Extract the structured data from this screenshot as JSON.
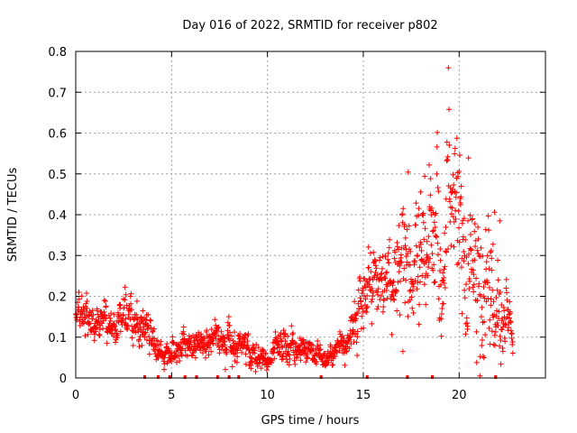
{
  "chart_data": {
    "type": "scatter",
    "title": "Day 016 of 2022, SRMTID for receiver p802",
    "xlabel": "GPS time / hours",
    "ylabel": "SRMTID / TECUs",
    "xlim": [
      0,
      24.5
    ],
    "ylim": [
      0,
      0.8
    ],
    "xticks": [
      0,
      5,
      10,
      15,
      20
    ],
    "yticks": [
      0,
      0.1,
      0.2,
      0.3,
      0.4,
      0.5,
      0.6,
      0.7,
      0.8
    ],
    "xtick_labels": [
      "0",
      "5",
      "10",
      "15",
      "20"
    ],
    "ytick_labels": [
      "0",
      "0.1",
      "0.2",
      "0.3",
      "0.4",
      "0.5",
      "0.6",
      "0.7",
      "0.8"
    ],
    "grid": true,
    "marker": "+",
    "color": "#ff0000",
    "series": [
      {
        "name": "SRMTID",
        "trend_profile": [
          [
            0.0,
            0.16,
            0.035
          ],
          [
            0.5,
            0.15,
            0.04
          ],
          [
            1.0,
            0.14,
            0.035
          ],
          [
            2.0,
            0.13,
            0.03
          ],
          [
            3.0,
            0.17,
            0.04
          ],
          [
            3.5,
            0.11,
            0.03
          ],
          [
            4.5,
            0.06,
            0.02
          ],
          [
            5.5,
            0.07,
            0.025
          ],
          [
            6.5,
            0.08,
            0.03
          ],
          [
            7.5,
            0.09,
            0.03
          ],
          [
            8.0,
            0.11,
            0.035
          ],
          [
            9.0,
            0.06,
            0.025
          ],
          [
            10.0,
            0.04,
            0.02
          ],
          [
            11.0,
            0.08,
            0.03
          ],
          [
            12.0,
            0.07,
            0.025
          ],
          [
            13.0,
            0.05,
            0.02
          ],
          [
            14.0,
            0.09,
            0.025
          ],
          [
            14.8,
            0.16,
            0.05
          ],
          [
            15.3,
            0.26,
            0.06
          ],
          [
            16.0,
            0.24,
            0.06
          ],
          [
            17.0,
            0.28,
            0.1
          ],
          [
            18.0,
            0.26,
            0.1
          ],
          [
            19.0,
            0.33,
            0.14
          ],
          [
            20.0,
            0.34,
            0.14
          ],
          [
            21.0,
            0.25,
            0.14
          ],
          [
            22.0,
            0.22,
            0.12
          ],
          [
            22.5,
            0.15,
            0.05
          ],
          [
            22.8,
            0.1,
            0.02
          ]
        ],
        "data_range_hours": [
          0.0,
          22.8
        ],
        "n_points": 1500
      }
    ],
    "flag_marks_x": [
      3.6,
      4.3,
      4.9,
      5.7,
      6.3,
      7.4,
      8.0,
      8.5,
      12.8,
      15.2,
      17.3,
      18.6,
      21.9
    ]
  }
}
